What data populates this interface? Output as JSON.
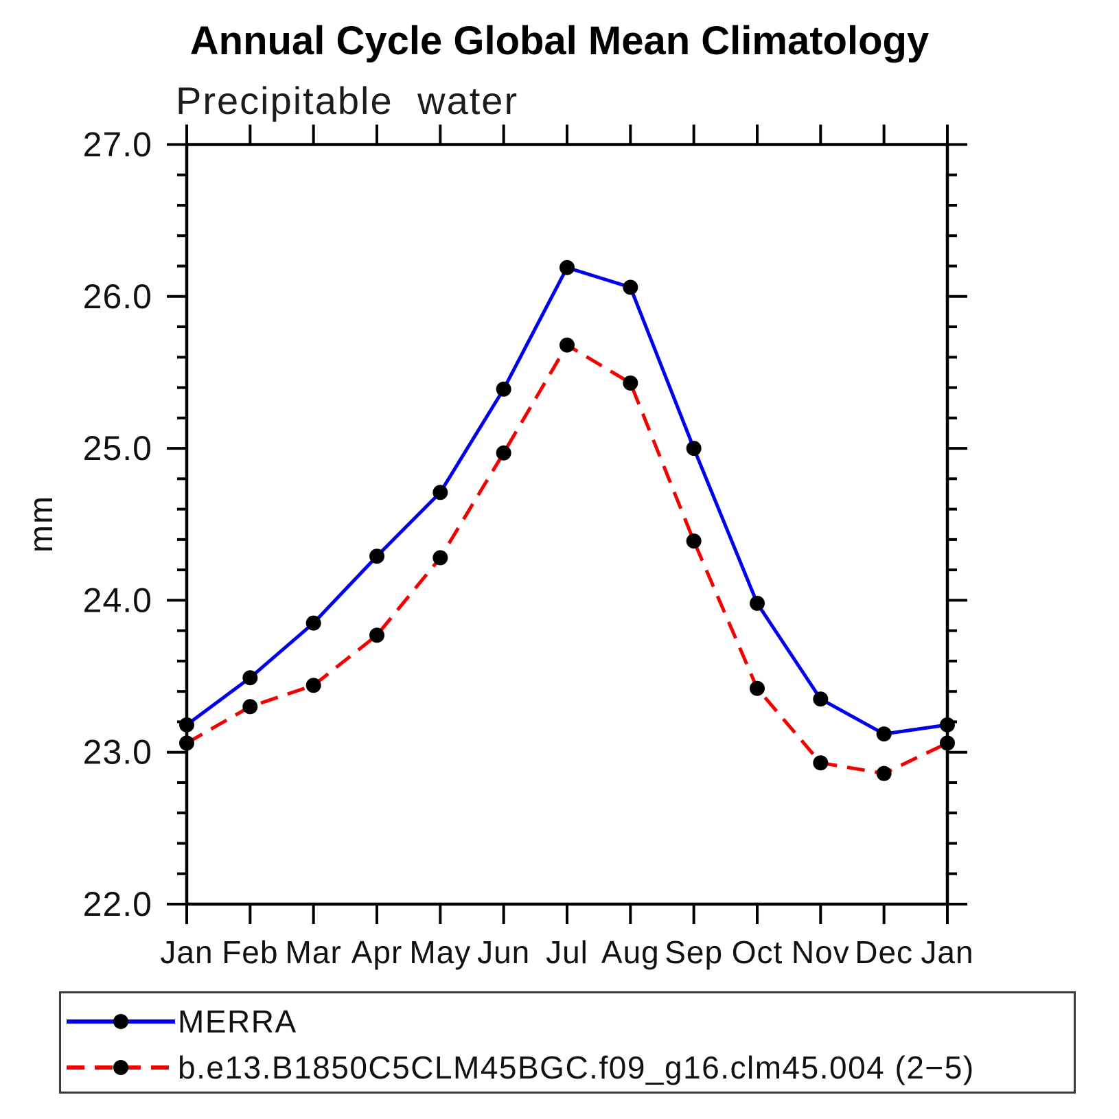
{
  "chart": {
    "title": "Annual Cycle Global Mean Climatology",
    "subtitle": "Precipitable water"
  },
  "legend": {
    "items": [
      {
        "label": "MERRA",
        "color": "#0000ee",
        "style": "solid",
        "marker": "filled-circle"
      },
      {
        "label": "b.e13.B1850C5CLM45BGC.f09_g16.clm45.004 (2−5)",
        "color": "#f50000",
        "style": "dashed",
        "marker": "filled-circle"
      }
    ]
  },
  "chart_data": {
    "type": "line",
    "title": "Annual Cycle Global Mean Climatology",
    "subtitle": "Precipitable water",
    "xlabel": "",
    "ylabel": "mm",
    "ylim": [
      22.0,
      27.0
    ],
    "ytick_step": 1.0,
    "ytick_minor_step": 0.2,
    "ytick_labels": [
      "22.0",
      "23.0",
      "24.0",
      "25.0",
      "26.0",
      "27.0"
    ],
    "categories": [
      "Jan",
      "Feb",
      "Mar",
      "Apr",
      "May",
      "Jun",
      "Jul",
      "Aug",
      "Sep",
      "Oct",
      "Nov",
      "Dec",
      "Jan"
    ],
    "series": [
      {
        "name": "MERRA",
        "color": "#0000ee",
        "line_style": "solid",
        "marker": "filled-circle",
        "values": [
          23.18,
          23.49,
          23.85,
          24.29,
          24.71,
          25.39,
          26.19,
          26.06,
          25.0,
          23.98,
          23.35,
          23.12,
          23.18
        ]
      },
      {
        "name": "b.e13.B1850C5CLM45BGC.f09_g16.clm45.004 (2−5)",
        "color": "#f50000",
        "line_style": "dashed",
        "marker": "filled-circle",
        "values": [
          23.06,
          23.3,
          23.44,
          23.77,
          24.28,
          24.97,
          25.68,
          25.43,
          24.39,
          23.42,
          22.93,
          22.86,
          23.06
        ]
      }
    ],
    "grid": false,
    "legend_position": "bottom"
  }
}
